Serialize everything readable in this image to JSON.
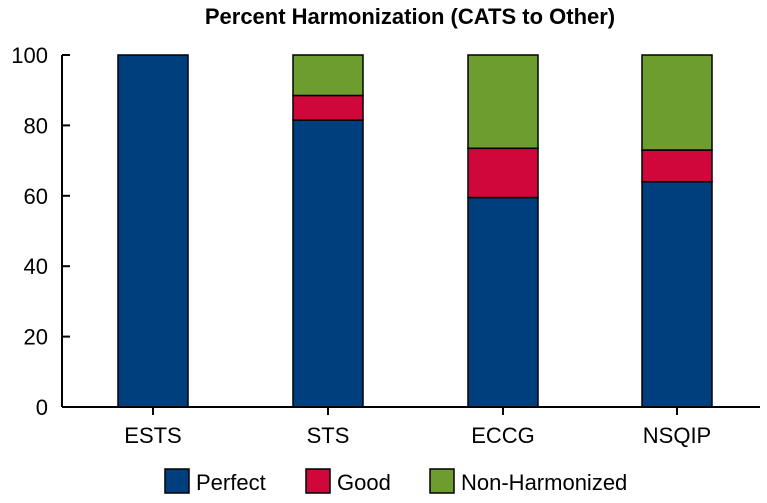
{
  "chart_data": {
    "type": "bar",
    "stacked": true,
    "title": "Percent Harmonization (CATS to Other)",
    "xlabel": "",
    "ylabel": "",
    "ylim": [
      0,
      100
    ],
    "yticks": [
      0,
      20,
      40,
      60,
      80,
      100
    ],
    "ytick_labels": [
      "0",
      "20",
      "40",
      "60",
      "80",
      "100"
    ],
    "grid": false,
    "legend_position": "bottom",
    "categories": [
      "ESTS",
      "STS",
      "ECCG",
      "NSQIP"
    ],
    "series": [
      {
        "name": "Perfect",
        "color": "#003f7d",
        "values": [
          100,
          81.5,
          59.5,
          64
        ]
      },
      {
        "name": "Good",
        "color": "#d0073a",
        "values": [
          0,
          7,
          14,
          9
        ]
      },
      {
        "name": "Non-Harmonized",
        "color": "#6e9d2f",
        "values": [
          0,
          11.5,
          26.5,
          27
        ]
      }
    ]
  }
}
